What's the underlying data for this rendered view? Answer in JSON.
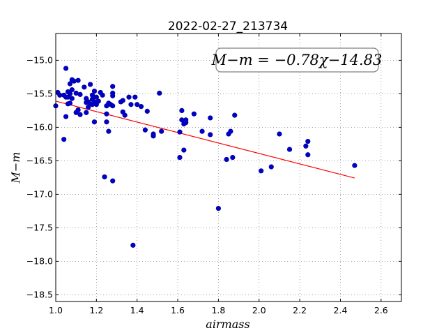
{
  "chart_data": {
    "type": "scatter",
    "title": "2022-02-27_213734",
    "xlabel": "airmass",
    "ylabel": "M−m",
    "xlim": [
      1.0,
      2.7
    ],
    "ylim": [
      -18.6,
      -14.6
    ],
    "x_ticks": [
      1.0,
      1.2,
      1.4,
      1.6,
      1.8,
      2.0,
      2.2,
      2.4,
      2.6
    ],
    "x_tick_labels": [
      "1.0",
      "1.2",
      "1.4",
      "1.6",
      "1.8",
      "2.0",
      "2.2",
      "2.4",
      "2.6"
    ],
    "y_ticks": [
      -15.0,
      -15.5,
      -16.0,
      -16.5,
      -17.0,
      -17.5,
      -18.0,
      -18.5
    ],
    "y_tick_labels": [
      "−15.0",
      "−15.5",
      "−16.0",
      "−16.5",
      "−17.0",
      "−17.5",
      "−18.0",
      "−18.5"
    ],
    "grid": true,
    "annotation": "M−m = −0.78χ−14.83",
    "fit": {
      "slope": -0.78,
      "intercept": -14.83,
      "x_range": [
        1.0,
        2.47
      ],
      "color": "#ff0000"
    },
    "marker_color": "#0000cc",
    "points": [
      [
        1.0,
        -15.68
      ],
      [
        1.01,
        -15.48
      ],
      [
        1.02,
        -15.52
      ],
      [
        1.04,
        -16.18
      ],
      [
        1.04,
        -15.52
      ],
      [
        1.05,
        -15.12
      ],
      [
        1.05,
        -15.84
      ],
      [
        1.05,
        -15.55
      ],
      [
        1.06,
        -15.55
      ],
      [
        1.06,
        -15.47
      ],
      [
        1.06,
        -15.65
      ],
      [
        1.07,
        -15.35
      ],
      [
        1.07,
        -15.5
      ],
      [
        1.07,
        -15.64
      ],
      [
        1.08,
        -15.29
      ],
      [
        1.08,
        -15.44
      ],
      [
        1.08,
        -15.57
      ],
      [
        1.09,
        -15.31
      ],
      [
        1.1,
        -15.49
      ],
      [
        1.1,
        -15.78
      ],
      [
        1.11,
        -15.3
      ],
      [
        1.11,
        -15.74
      ],
      [
        1.12,
        -15.51
      ],
      [
        1.12,
        -15.81
      ],
      [
        1.14,
        -15.4
      ],
      [
        1.15,
        -15.57
      ],
      [
        1.15,
        -15.63
      ],
      [
        1.15,
        -15.78
      ],
      [
        1.16,
        -15.62
      ],
      [
        1.16,
        -15.7
      ],
      [
        1.17,
        -15.36
      ],
      [
        1.17,
        -15.65
      ],
      [
        1.18,
        -15.52
      ],
      [
        1.18,
        -15.58
      ],
      [
        1.18,
        -15.66
      ],
      [
        1.19,
        -15.46
      ],
      [
        1.19,
        -15.62
      ],
      [
        1.19,
        -15.92
      ],
      [
        1.2,
        -15.55
      ],
      [
        1.2,
        -15.66
      ],
      [
        1.21,
        -15.61
      ],
      [
        1.22,
        -15.48
      ],
      [
        1.23,
        -15.52
      ],
      [
        1.24,
        -16.74
      ],
      [
        1.25,
        -15.68
      ],
      [
        1.25,
        -15.8
      ],
      [
        1.25,
        -15.92
      ],
      [
        1.26,
        -15.64
      ],
      [
        1.26,
        -16.06
      ],
      [
        1.27,
        -15.66
      ],
      [
        1.28,
        -15.39
      ],
      [
        1.28,
        -15.49
      ],
      [
        1.28,
        -15.53
      ],
      [
        1.28,
        -15.68
      ],
      [
        1.28,
        -16.8
      ],
      [
        1.32,
        -15.62
      ],
      [
        1.33,
        -15.6
      ],
      [
        1.33,
        -15.77
      ],
      [
        1.34,
        -15.82
      ],
      [
        1.36,
        -15.55
      ],
      [
        1.37,
        -15.66
      ],
      [
        1.38,
        -17.76
      ],
      [
        1.39,
        -15.55
      ],
      [
        1.4,
        -15.66
      ],
      [
        1.42,
        -15.69
      ],
      [
        1.44,
        -16.04
      ],
      [
        1.45,
        -15.76
      ],
      [
        1.48,
        -16.13
      ],
      [
        1.48,
        -16.1
      ],
      [
        1.51,
        -15.49
      ],
      [
        1.52,
        -16.06
      ],
      [
        1.61,
        -16.45
      ],
      [
        1.61,
        -16.07
      ],
      [
        1.62,
        -15.75
      ],
      [
        1.62,
        -15.89
      ],
      [
        1.63,
        -16.34
      ],
      [
        1.63,
        -15.95
      ],
      [
        1.64,
        -15.93
      ],
      [
        1.64,
        -15.89
      ],
      [
        1.68,
        -15.8
      ],
      [
        1.72,
        -16.06
      ],
      [
        1.76,
        -15.86
      ],
      [
        1.76,
        -16.11
      ],
      [
        1.8,
        -17.21
      ],
      [
        1.84,
        -16.48
      ],
      [
        1.85,
        -16.1
      ],
      [
        1.86,
        -16.06
      ],
      [
        1.87,
        -16.45
      ],
      [
        1.88,
        -15.82
      ],
      [
        2.01,
        -16.65
      ],
      [
        2.06,
        -16.59
      ],
      [
        2.1,
        -16.1
      ],
      [
        2.15,
        -16.33
      ],
      [
        2.23,
        -16.28
      ],
      [
        2.24,
        -16.21
      ],
      [
        2.24,
        -16.41
      ],
      [
        2.47,
        -16.57
      ]
    ]
  }
}
